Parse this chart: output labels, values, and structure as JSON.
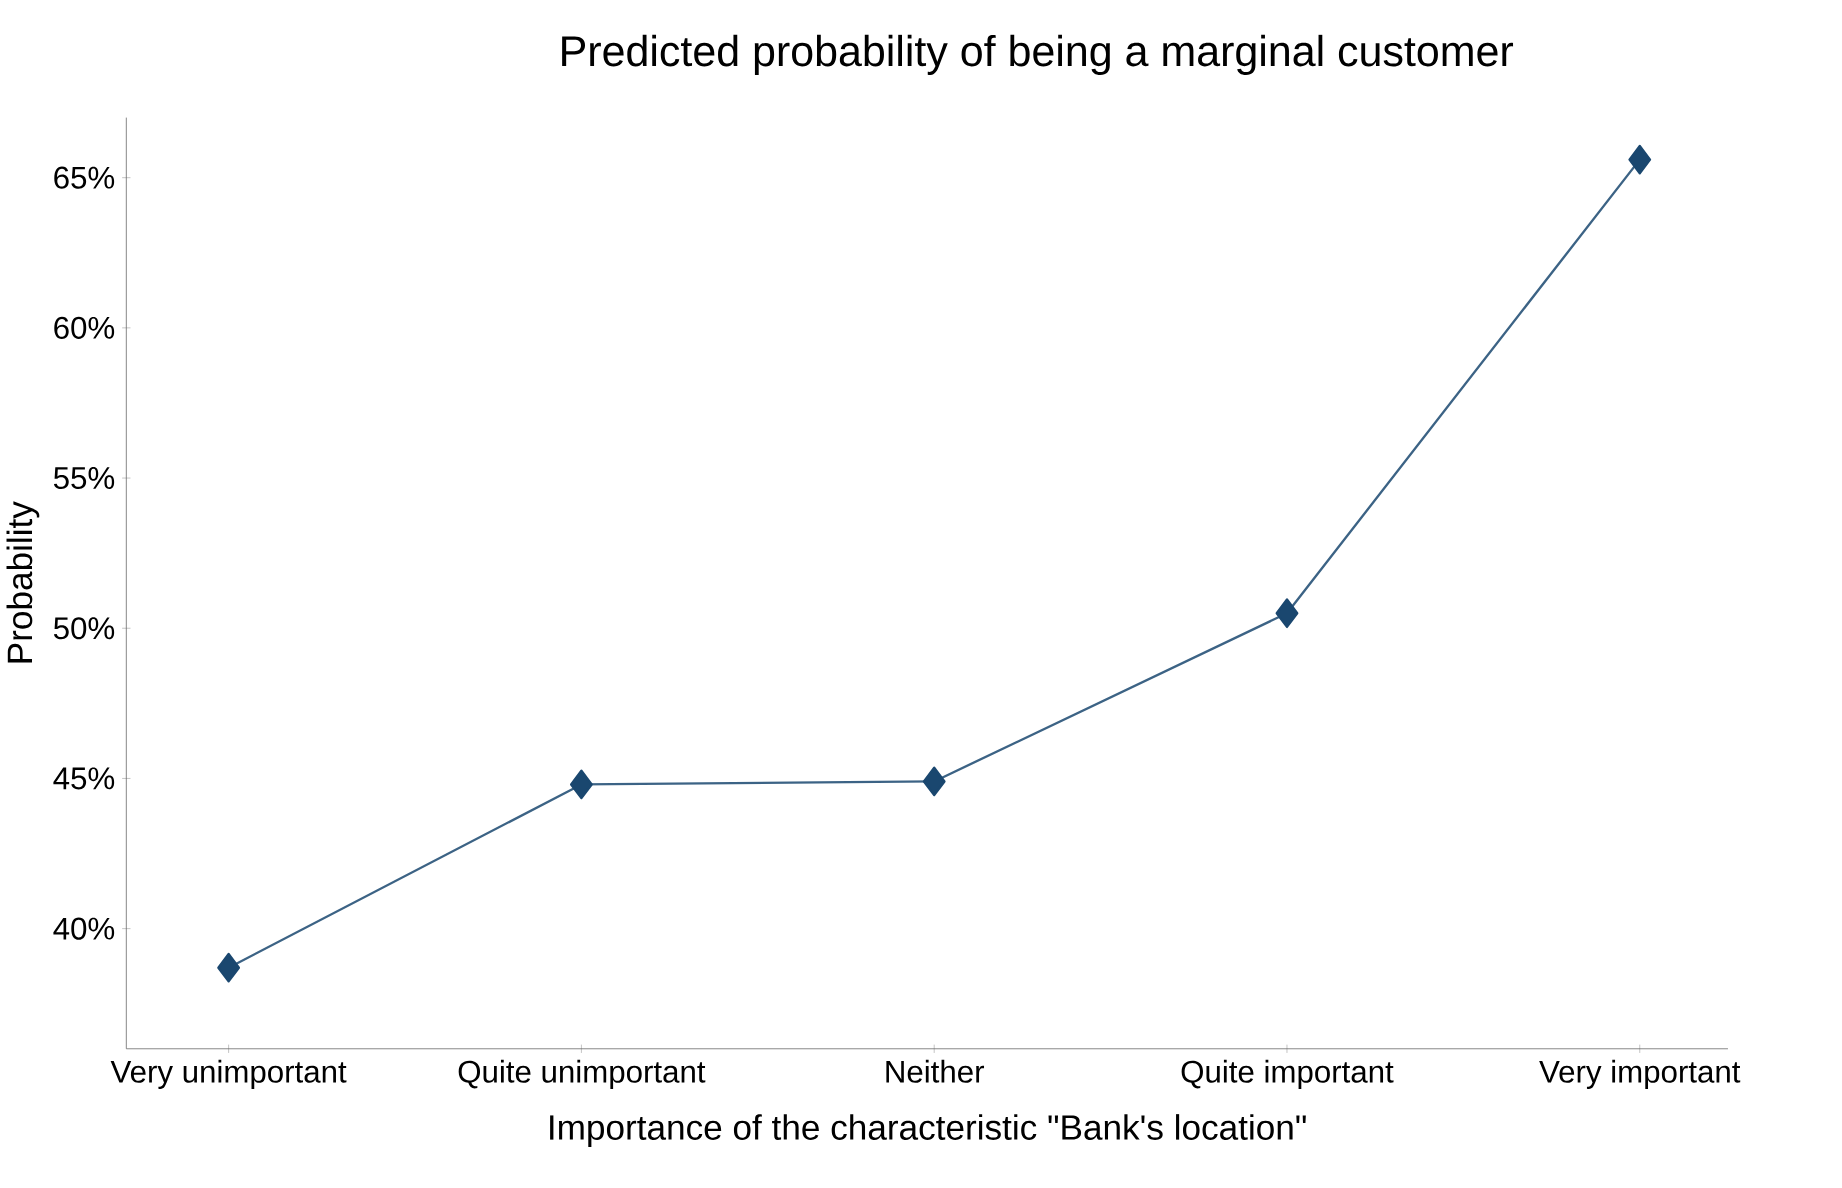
{
  "chart_data": {
    "type": "line",
    "title": "Predicted probability of being a marginal customer",
    "xlabel": "Importance of the characteristic \"Bank's location\"",
    "ylabel": "Probability",
    "categories": [
      "Very unimportant",
      "Quite unimportant",
      "Neither",
      "Quite important",
      "Very important"
    ],
    "series": [
      {
        "color": "#1a476f",
        "values": [
          38.7,
          44.8,
          44.9,
          50.5,
          65.6
        ]
      }
    ],
    "ylim": [
      36,
      67
    ],
    "yticks": [
      {
        "value": 40,
        "label": "40%"
      },
      {
        "value": 45,
        "label": "45%"
      },
      {
        "value": 50,
        "label": "50%"
      },
      {
        "value": 55,
        "label": "55%"
      },
      {
        "value": 60,
        "label": "60%"
      },
      {
        "value": 65,
        "label": "65%"
      }
    ],
    "marker": "diamond",
    "line_style": "solid"
  }
}
